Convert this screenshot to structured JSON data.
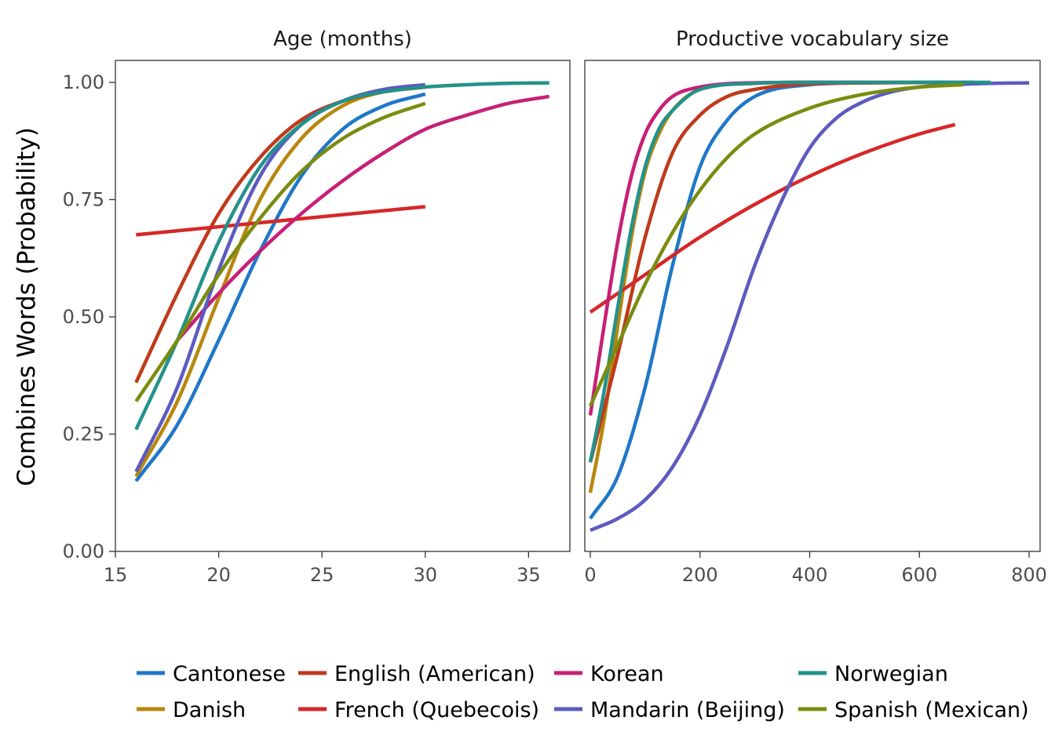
{
  "chart_data": {
    "type": "line",
    "ylabel": "Combines Words (Probability)",
    "ylim": [
      0,
      1
    ],
    "yticks": [
      0,
      0.25,
      0.5,
      0.75,
      1
    ],
    "ytick_labels": [
      "0.00",
      "0.25",
      "0.50",
      "0.75",
      "1.00"
    ],
    "legend_position": "bottom",
    "languages": [
      {
        "name": "Cantonese",
        "color": "#1f77c8"
      },
      {
        "name": "Danish",
        "color": "#b8860b"
      },
      {
        "name": "English (American)",
        "color": "#c0391b"
      },
      {
        "name": "French (Quebecois)",
        "color": "#d62728"
      },
      {
        "name": "Korean",
        "color": "#c71f77"
      },
      {
        "name": "Mandarin (Beijing)",
        "color": "#5b5bbf"
      },
      {
        "name": "Norwegian",
        "color": "#23928a"
      },
      {
        "name": "Spanish (Mexican)",
        "color": "#7a8c10"
      }
    ],
    "panels": [
      {
        "title": "Age (months)",
        "xlim": [
          15,
          37
        ],
        "xticks": [
          15,
          20,
          25,
          30,
          35
        ],
        "xtick_labels": [
          "15",
          "20",
          "25",
          "30",
          "35"
        ],
        "series": [
          {
            "name": "Cantonese",
            "x": [
              16,
              18,
              20,
              22,
              24,
              26,
              28,
              30
            ],
            "y": [
              0.15,
              0.27,
              0.45,
              0.64,
              0.8,
              0.9,
              0.95,
              0.975
            ]
          },
          {
            "name": "Danish",
            "x": [
              16,
              18,
              20,
              22,
              24,
              26,
              28,
              30
            ],
            "y": [
              0.16,
              0.32,
              0.54,
              0.75,
              0.88,
              0.95,
              0.98,
              0.99
            ]
          },
          {
            "name": "English (American)",
            "x": [
              16,
              18,
              20,
              22,
              24,
              26,
              28,
              30
            ],
            "y": [
              0.36,
              0.55,
              0.72,
              0.84,
              0.92,
              0.96,
              0.98,
              0.99
            ]
          },
          {
            "name": "French (Quebecois)",
            "x": [
              16,
              30
            ],
            "y": [
              0.675,
              0.735
            ]
          },
          {
            "name": "Korean",
            "x": [
              18,
              20,
              22,
              24,
              26,
              28,
              30,
              32,
              34,
              36
            ],
            "y": [
              0.45,
              0.55,
              0.64,
              0.72,
              0.79,
              0.85,
              0.9,
              0.93,
              0.955,
              0.97
            ]
          },
          {
            "name": "Mandarin (Beijing)",
            "x": [
              16,
              18,
              20,
              22,
              24,
              26,
              28,
              30
            ],
            "y": [
              0.17,
              0.35,
              0.6,
              0.8,
              0.91,
              0.96,
              0.985,
              0.995
            ]
          },
          {
            "name": "Norwegian",
            "x": [
              16,
              18,
              20,
              22,
              24,
              26,
              28,
              30,
              32,
              34,
              36
            ],
            "y": [
              0.26,
              0.45,
              0.66,
              0.82,
              0.91,
              0.96,
              0.98,
              0.99,
              0.995,
              0.998,
              0.999
            ]
          },
          {
            "name": "Spanish (Mexican)",
            "x": [
              16,
              18,
              20,
              22,
              24,
              26,
              28,
              30
            ],
            "y": [
              0.32,
              0.45,
              0.59,
              0.71,
              0.81,
              0.88,
              0.925,
              0.955
            ]
          }
        ]
      },
      {
        "title": "Productive vocabulary size",
        "xlim": [
          -10,
          820
        ],
        "xticks": [
          0,
          200,
          400,
          600,
          800
        ],
        "xtick_labels": [
          "0",
          "200",
          "400",
          "600",
          "800"
        ],
        "series": [
          {
            "name": "Cantonese",
            "x": [
              0,
              50,
              100,
              150,
              200,
              250,
              300,
              400,
              500,
              600,
              700
            ],
            "y": [
              0.07,
              0.16,
              0.35,
              0.61,
              0.82,
              0.92,
              0.97,
              0.995,
              0.999,
              1.0,
              1.0
            ]
          },
          {
            "name": "Danish",
            "x": [
              0,
              25,
              50,
              75,
              100,
              125,
              150,
              200,
              300,
              400,
              600
            ],
            "y": [
              0.125,
              0.28,
              0.48,
              0.67,
              0.81,
              0.89,
              0.94,
              0.985,
              0.998,
              1.0,
              1.0
            ]
          },
          {
            "name": "English (American)",
            "x": [
              0,
              50,
              100,
              150,
              200,
              250,
              300,
              400,
              500,
              650
            ],
            "y": [
              0.19,
              0.42,
              0.67,
              0.85,
              0.93,
              0.97,
              0.985,
              0.997,
              0.999,
              1.0
            ]
          },
          {
            "name": "French (Quebecois)",
            "x": [
              0,
              100,
              200,
              300,
              400,
              500,
              600,
              665
            ],
            "y": [
              0.51,
              0.59,
              0.67,
              0.74,
              0.8,
              0.85,
              0.89,
              0.91
            ]
          },
          {
            "name": "Korean",
            "x": [
              0,
              25,
              50,
              75,
              100,
              125,
              150,
              200,
              300,
              400,
              500
            ],
            "y": [
              0.29,
              0.48,
              0.66,
              0.8,
              0.89,
              0.94,
              0.97,
              0.99,
              0.999,
              1.0,
              1.0
            ]
          },
          {
            "name": "Mandarin (Beijing)",
            "x": [
              0,
              50,
              100,
              150,
              200,
              250,
              300,
              350,
              400,
              450,
              500,
              550,
              600,
              700,
              800
            ],
            "y": [
              0.045,
              0.07,
              0.11,
              0.18,
              0.29,
              0.44,
              0.61,
              0.75,
              0.86,
              0.925,
              0.96,
              0.98,
              0.99,
              0.997,
              0.999
            ]
          },
          {
            "name": "Norwegian",
            "x": [
              0,
              25,
              50,
              75,
              100,
              125,
              150,
              200,
              300,
              400,
              600,
              730
            ],
            "y": [
              0.19,
              0.34,
              0.52,
              0.69,
              0.82,
              0.9,
              0.94,
              0.985,
              0.998,
              1.0,
              1.0,
              1.0
            ]
          },
          {
            "name": "Spanish (Mexican)",
            "x": [
              0,
              50,
              100,
              150,
              200,
              250,
              300,
              400,
              500,
              600,
              680
            ],
            "y": [
              0.31,
              0.44,
              0.57,
              0.68,
              0.77,
              0.84,
              0.89,
              0.945,
              0.975,
              0.99,
              0.995
            ]
          }
        ]
      }
    ]
  }
}
